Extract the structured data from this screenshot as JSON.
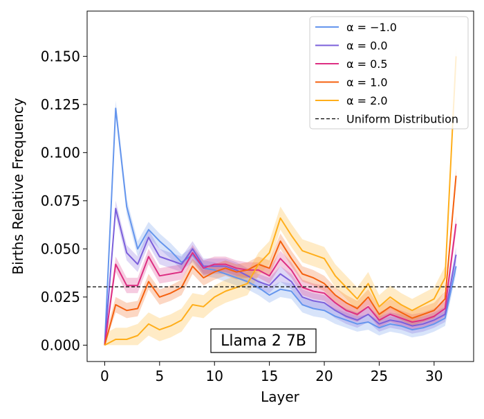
{
  "chart_data": {
    "type": "line",
    "xlabel": "Layer",
    "ylabel": "Births Relative Frequency",
    "xlim": [
      -1.6,
      33.6
    ],
    "ylim": [
      -0.0085,
      0.1735
    ],
    "xticks": [
      0,
      5,
      10,
      15,
      20,
      25,
      30
    ],
    "yticks": [
      0.0,
      0.025,
      0.05,
      0.075,
      0.1,
      0.125,
      0.15
    ],
    "ytick_labels": [
      "0.000",
      "0.025",
      "0.050",
      "0.075",
      "0.100",
      "0.125",
      "0.150"
    ],
    "grid": false,
    "legend_position": "top-right",
    "annotation": "Llama 2 7B",
    "x": [
      0,
      1,
      2,
      3,
      4,
      5,
      6,
      7,
      8,
      9,
      10,
      11,
      12,
      13,
      14,
      15,
      16,
      17,
      18,
      19,
      20,
      21,
      22,
      23,
      24,
      25,
      26,
      27,
      28,
      29,
      30,
      31,
      32
    ],
    "series": [
      {
        "name": "α = −1.0",
        "color": "#6495ED",
        "band": 0.004,
        "values": [
          0.0,
          0.123,
          0.072,
          0.05,
          0.06,
          0.054,
          0.049,
          0.043,
          0.047,
          0.04,
          0.039,
          0.037,
          0.035,
          0.033,
          0.03,
          0.026,
          0.029,
          0.028,
          0.021,
          0.019,
          0.018,
          0.015,
          0.013,
          0.011,
          0.012,
          0.009,
          0.011,
          0.01,
          0.008,
          0.009,
          0.011,
          0.014,
          0.041
        ]
      },
      {
        "name": "α = 0.0",
        "color": "#7B5FDB",
        "band": 0.004,
        "values": [
          0.0,
          0.071,
          0.048,
          0.042,
          0.056,
          0.046,
          0.044,
          0.042,
          0.05,
          0.041,
          0.041,
          0.041,
          0.039,
          0.036,
          0.033,
          0.031,
          0.037,
          0.033,
          0.025,
          0.023,
          0.022,
          0.018,
          0.015,
          0.013,
          0.016,
          0.011,
          0.013,
          0.012,
          0.01,
          0.011,
          0.013,
          0.016,
          0.047
        ]
      },
      {
        "name": "α = 0.5",
        "color": "#DD2E82",
        "band": 0.004,
        "values": [
          0.0,
          0.042,
          0.031,
          0.031,
          0.046,
          0.036,
          0.037,
          0.038,
          0.048,
          0.04,
          0.042,
          0.042,
          0.04,
          0.039,
          0.039,
          0.036,
          0.045,
          0.039,
          0.03,
          0.028,
          0.027,
          0.022,
          0.018,
          0.016,
          0.02,
          0.013,
          0.016,
          0.014,
          0.012,
          0.013,
          0.015,
          0.019,
          0.063
        ]
      },
      {
        "name": "α = 1.0",
        "color": "#F5610F",
        "band": 0.004,
        "values": [
          0.0,
          0.021,
          0.018,
          0.019,
          0.033,
          0.025,
          0.027,
          0.03,
          0.041,
          0.035,
          0.038,
          0.04,
          0.038,
          0.039,
          0.042,
          0.04,
          0.054,
          0.045,
          0.037,
          0.035,
          0.032,
          0.026,
          0.022,
          0.019,
          0.025,
          0.016,
          0.02,
          0.017,
          0.014,
          0.016,
          0.018,
          0.024,
          0.088
        ]
      },
      {
        "name": "α = 2.0",
        "color": "#FFAE1A",
        "band": 0.006,
        "values": [
          0.0,
          0.003,
          0.003,
          0.005,
          0.011,
          0.008,
          0.01,
          0.013,
          0.021,
          0.02,
          0.025,
          0.028,
          0.03,
          0.032,
          0.042,
          0.048,
          0.066,
          0.057,
          0.049,
          0.047,
          0.045,
          0.036,
          0.03,
          0.024,
          0.032,
          0.02,
          0.025,
          0.021,
          0.018,
          0.021,
          0.024,
          0.035,
          0.15
        ]
      }
    ],
    "reference_line": {
      "name": "Uniform Distribution",
      "value": 0.0303,
      "color": "#000000",
      "style": "dashed"
    }
  }
}
